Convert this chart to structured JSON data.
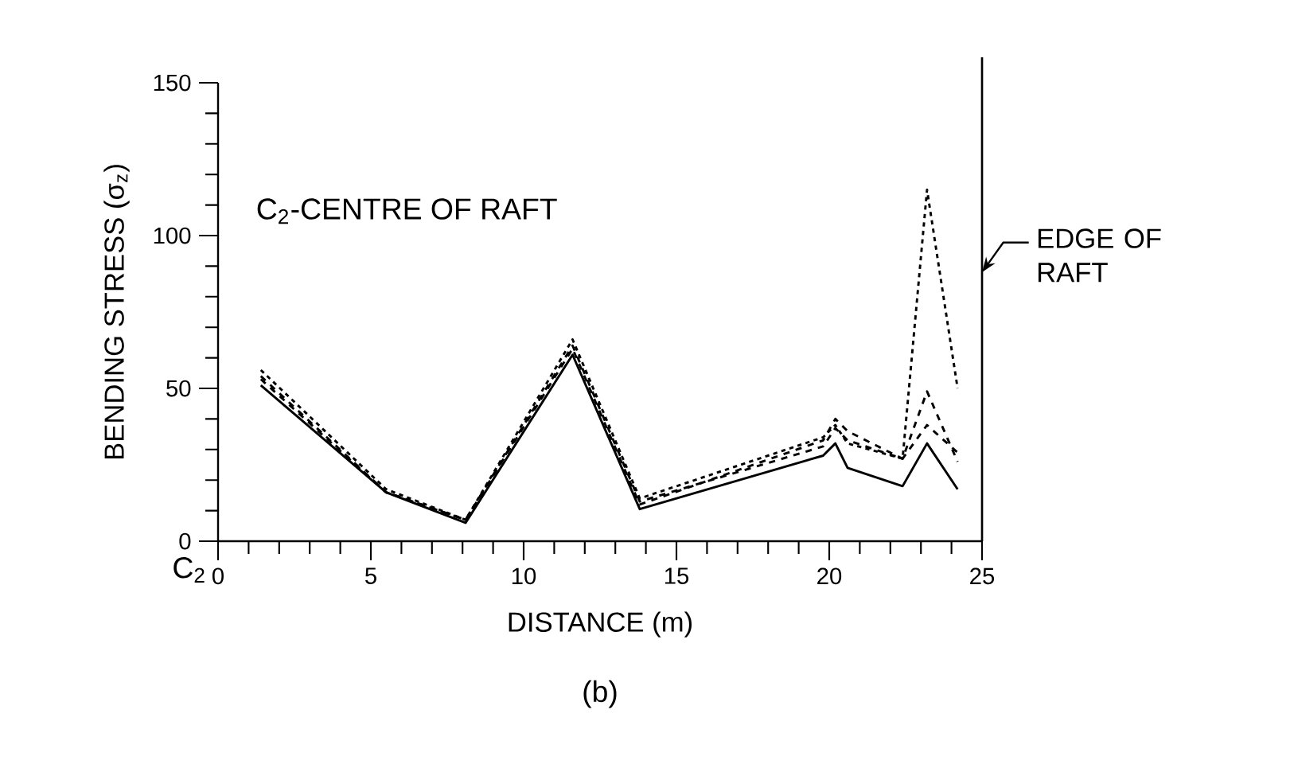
{
  "chart_data": {
    "type": "line",
    "xlabel": "DISTANCE (m)",
    "ylabel": "BENDING STRESS (σ$_{z}$)",
    "x": [
      1.4,
      5.5,
      8.1,
      11.6,
      13.8,
      19.8,
      20.2,
      20.6,
      22.4,
      23.2,
      24.2
    ],
    "series": [
      {
        "color": "#000000",
        "line_style": "solid",
        "values": [
          51,
          16,
          6,
          61,
          10.5,
          28,
          32,
          24,
          18,
          32,
          17
        ]
      },
      {
        "color": "#000000",
        "line_style": "dashed",
        "values": [
          53,
          16,
          7,
          63,
          12,
          33,
          40,
          36,
          27,
          49,
          26
        ]
      },
      {
        "color": "#000000",
        "line_style": "dashed",
        "values": [
          54,
          16,
          7,
          64,
          13,
          31,
          37,
          33,
          27,
          38,
          29
        ]
      },
      {
        "color": "#000000",
        "line_style": "dotted",
        "values": [
          56,
          17,
          7,
          66,
          14,
          34,
          38,
          32,
          27,
          115,
          50
        ]
      }
    ],
    "xlim": [
      0,
      25
    ],
    "ylim": [
      0,
      150
    ],
    "xticks": [
      0,
      5,
      10,
      15,
      20,
      25
    ],
    "yticks": [
      0,
      50,
      100,
      150
    ],
    "ref_lines": [
      {
        "axis": "x",
        "value": 25,
        "label": "EDGE OF RAFT"
      }
    ],
    "annotations": [
      "C$_{2}$-CENTRE OF RAFT",
      "C$_{2}$",
      "(b)"
    ],
    "grid": false,
    "legend": false,
    "marker": "none"
  }
}
